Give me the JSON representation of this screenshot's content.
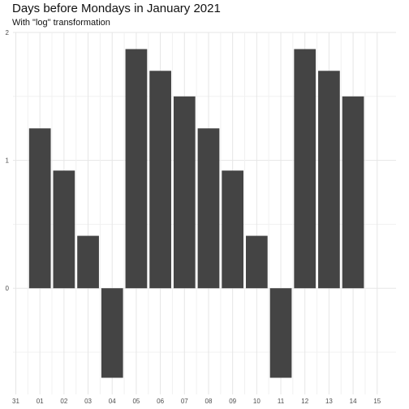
{
  "title": "Days before Mondays in January 2021",
  "subtitle": "With \"log\" transformation",
  "chart_data": {
    "type": "bar",
    "categories": [
      "31",
      "01",
      "02",
      "03",
      "04",
      "05",
      "06",
      "07",
      "08",
      "09",
      "10",
      "11",
      "12",
      "13",
      "14",
      "15"
    ],
    "values": [
      null,
      1.25,
      0.92,
      0.41,
      -0.7,
      1.87,
      1.7,
      1.5,
      1.25,
      0.92,
      0.41,
      -0.7,
      1.87,
      1.7,
      1.5,
      null
    ],
    "ylim": [
      -0.83,
      2.0
    ],
    "yticks": [
      "0",
      "1",
      "2"
    ],
    "bar_color": "#444444",
    "grid": true
  }
}
